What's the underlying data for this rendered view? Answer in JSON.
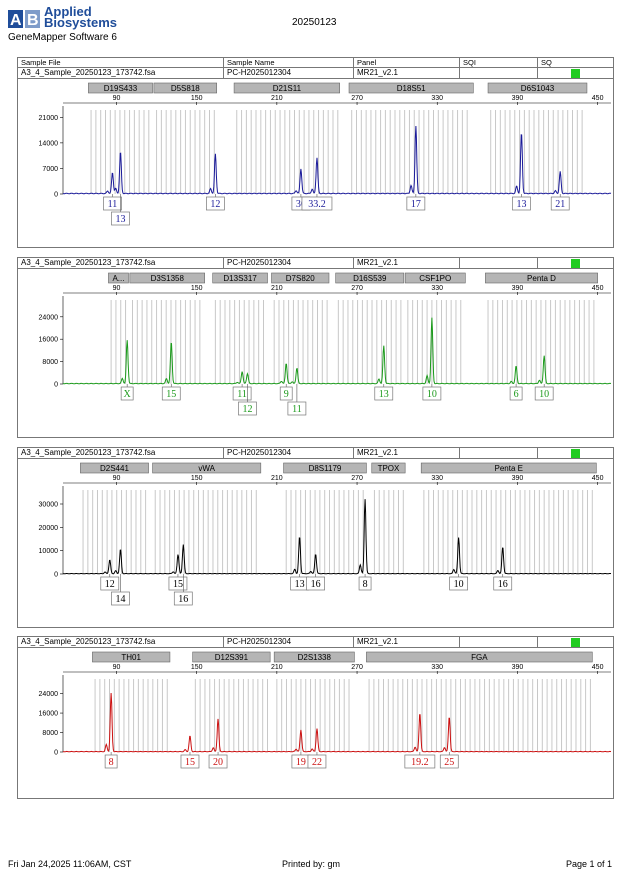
{
  "header": {
    "brand_line1": "Applied",
    "brand_line2": "Biosystems",
    "software": "GeneMapper Software 6",
    "run_date": "20250123",
    "columns": [
      "Sample File",
      "Sample Name",
      "Panel",
      "SQI",
      "SQ"
    ]
  },
  "footer": {
    "printed_at": "Fri Jan 24,2025 11:06AM, CST",
    "printed_by": "Printed by: gm",
    "page": "Page 1 of 1"
  },
  "colors": {
    "blue": "#1a1a99",
    "green": "#1b9a1b",
    "black": "#000000",
    "red": "#cc1111",
    "quality": "#22cc22"
  },
  "chart_data": [
    {
      "type": "line",
      "sample_file": "A3_4_Sample_20250123_173742.fsa",
      "sample_name": "PC-H2025012304",
      "panel": "MR21_v2.1",
      "color": "#1a1a99",
      "xlim": [
        50,
        460
      ],
      "ylim": [
        0,
        23000
      ],
      "xticks": [
        90,
        150,
        210,
        270,
        330,
        390,
        450
      ],
      "yticks": [
        0,
        7000,
        14000,
        21000
      ],
      "markers": [
        {
          "label": "D19S433",
          "from": 69,
          "to": 117
        },
        {
          "label": "D5S818",
          "from": 118,
          "to": 165
        },
        {
          "label": "D21S11",
          "from": 178,
          "to": 257
        },
        {
          "label": "D18S51",
          "from": 264,
          "to": 357
        },
        {
          "label": "D6S1043",
          "from": 368,
          "to": 442
        }
      ],
      "peaks": [
        {
          "x": 87,
          "h": 5800,
          "label": "11",
          "row": 0
        },
        {
          "x": 93,
          "h": 11500,
          "label": "13",
          "row": 1
        },
        {
          "x": 164,
          "h": 10800,
          "label": "12",
          "row": 0
        },
        {
          "x": 228,
          "h": 6800,
          "label": "30",
          "row": 0
        },
        {
          "x": 240,
          "h": 9800,
          "label": "33.2",
          "row": 0
        },
        {
          "x": 314,
          "h": 18500,
          "label": "17",
          "row": 0
        },
        {
          "x": 393,
          "h": 16800,
          "label": "13",
          "row": 0
        },
        {
          "x": 422,
          "h": 6000,
          "label": "21",
          "row": 0
        }
      ]
    },
    {
      "type": "line",
      "sample_file": "A3_4_Sample_20250123_173742.fsa",
      "sample_name": "PC-H2025012304",
      "panel": "MR21_v2.1",
      "color": "#1b9a1b",
      "xlim": [
        50,
        460
      ],
      "ylim": [
        0,
        30000
      ],
      "xticks": [
        90,
        150,
        210,
        270,
        330,
        390,
        450
      ],
      "yticks": [
        0,
        8000,
        16000,
        24000
      ],
      "markers": [
        {
          "label": "A...",
          "from": 84,
          "to": 99
        },
        {
          "label": "D3S1358",
          "from": 100,
          "to": 156
        },
        {
          "label": "D13S317",
          "from": 162,
          "to": 203
        },
        {
          "label": "D7S820",
          "from": 206,
          "to": 249
        },
        {
          "label": "D16S539",
          "from": 254,
          "to": 305
        },
        {
          "label": "CSF1PO",
          "from": 306,
          "to": 351
        },
        {
          "label": "Penta D",
          "from": 366,
          "to": 450
        }
      ],
      "peaks": [
        {
          "x": 98,
          "h": 15500,
          "label": "X",
          "row": 0
        },
        {
          "x": 131,
          "h": 15000,
          "label": "15",
          "row": 0
        },
        {
          "x": 184,
          "h": 4000,
          "label": "11",
          "row": 0
        },
        {
          "x": 188,
          "h": 3600,
          "label": "12",
          "row": 1
        },
        {
          "x": 217,
          "h": 7300,
          "label": "9",
          "row": 0
        },
        {
          "x": 225,
          "h": 5600,
          "label": "11",
          "row": 1
        },
        {
          "x": 290,
          "h": 13500,
          "label": "13",
          "row": 0
        },
        {
          "x": 326,
          "h": 23500,
          "label": "10",
          "row": 0
        },
        {
          "x": 389,
          "h": 6300,
          "label": "6",
          "row": 0
        },
        {
          "x": 410,
          "h": 10000,
          "label": "10",
          "row": 0
        }
      ]
    },
    {
      "type": "line",
      "sample_file": "A3_4_Sample_20250123_173742.fsa",
      "sample_name": "PC-H2025012304",
      "panel": "MR21_v2.1",
      "color": "#000000",
      "xlim": [
        50,
        460
      ],
      "ylim": [
        0,
        36000
      ],
      "xticks": [
        90,
        150,
        210,
        270,
        330,
        390,
        450
      ],
      "yticks": [
        0,
        10000,
        20000,
        30000
      ],
      "markers": [
        {
          "label": "D2S441",
          "from": 63,
          "to": 114
        },
        {
          "label": "vWA",
          "from": 117,
          "to": 198
        },
        {
          "label": "D8S1179",
          "from": 215,
          "to": 277
        },
        {
          "label": "TPOX",
          "from": 281,
          "to": 306
        },
        {
          "label": "Penta E",
          "from": 318,
          "to": 449
        }
      ],
      "peaks": [
        {
          "x": 85,
          "h": 6000,
          "label": "12",
          "row": 0
        },
        {
          "x": 93,
          "h": 10500,
          "label": "14",
          "row": 1
        },
        {
          "x": 136,
          "h": 7000,
          "label": "15",
          "row": 0
        },
        {
          "x": 140,
          "h": 12500,
          "label": "16",
          "row": 1
        },
        {
          "x": 227,
          "h": 16000,
          "label": "13",
          "row": 0
        },
        {
          "x": 239,
          "h": 8500,
          "label": "16",
          "row": 0
        },
        {
          "x": 276,
          "h": 32000,
          "label": "8",
          "row": 0
        },
        {
          "x": 346,
          "h": 15500,
          "label": "10",
          "row": 0
        },
        {
          "x": 379,
          "h": 11500,
          "label": "16",
          "row": 0
        }
      ]
    },
    {
      "type": "line",
      "sample_file": "A3_4_Sample_20250123_173742.fsa",
      "sample_name": "PC-H2025012304",
      "panel": "MR21_v2.1",
      "color": "#cc1111",
      "xlim": [
        50,
        460
      ],
      "ylim": [
        0,
        30000
      ],
      "xticks": [
        90,
        150,
        210,
        270,
        330,
        390,
        450
      ],
      "yticks": [
        0,
        8000,
        16000,
        24000
      ],
      "markers": [
        {
          "label": "TH01",
          "from": 72,
          "to": 130
        },
        {
          "label": "D12S391",
          "from": 147,
          "to": 205
        },
        {
          "label": "D2S1338",
          "from": 208,
          "to": 268
        },
        {
          "label": "FGA",
          "from": 277,
          "to": 446
        }
      ],
      "peaks": [
        {
          "x": 86,
          "h": 24000,
          "label": "8",
          "row": 0
        },
        {
          "x": 145,
          "h": 6500,
          "label": "15",
          "row": 0
        },
        {
          "x": 166,
          "h": 13500,
          "label": "20",
          "row": 0
        },
        {
          "x": 228,
          "h": 9000,
          "label": "19",
          "row": 0
        },
        {
          "x": 240,
          "h": 9500,
          "label": "22",
          "row": 0
        },
        {
          "x": 317,
          "h": 16000,
          "label": "19.2",
          "row": 0
        },
        {
          "x": 339,
          "h": 14500,
          "label": "25",
          "row": 0
        }
      ]
    }
  ]
}
